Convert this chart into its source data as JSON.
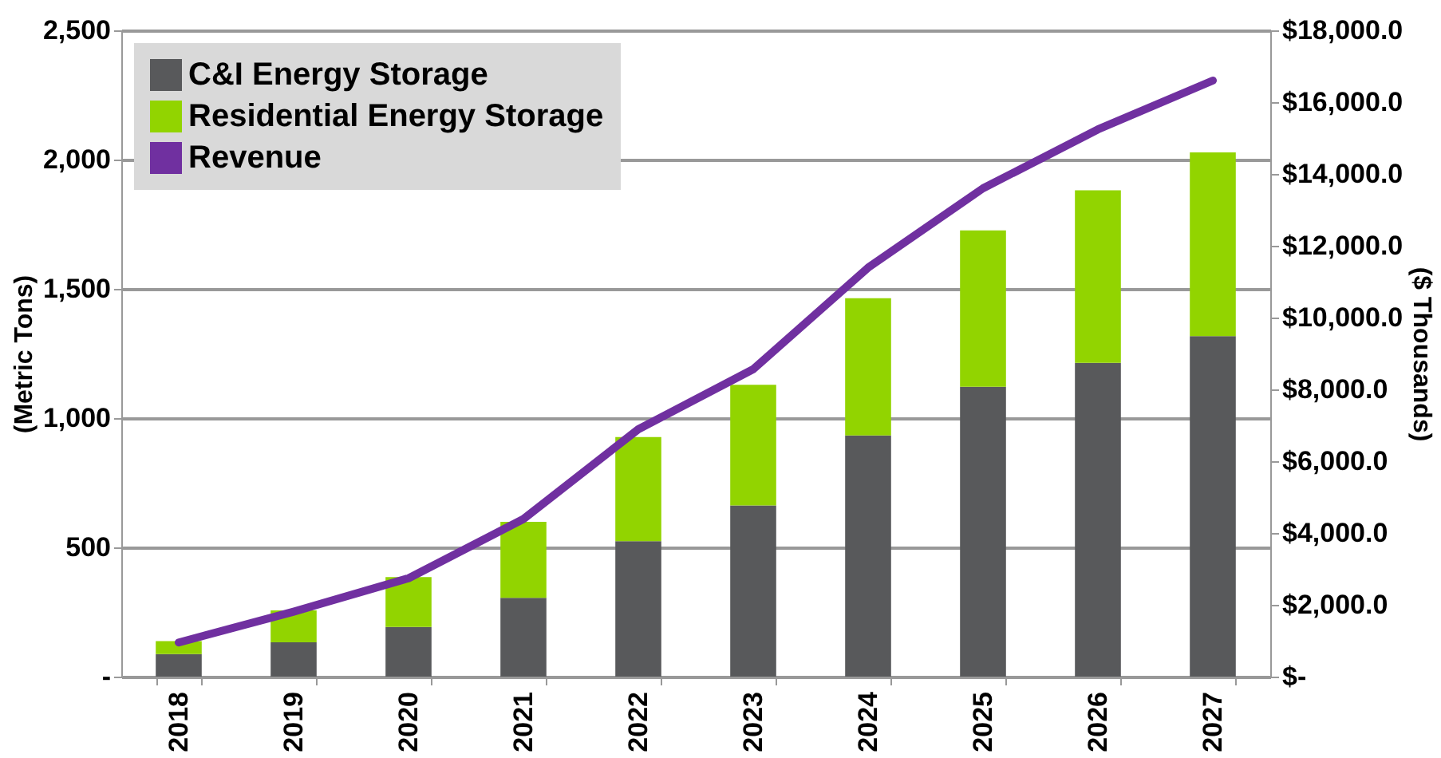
{
  "chart_data": {
    "type": "bar",
    "stacked": true,
    "categories": [
      "2018",
      "2019",
      "2020",
      "2021",
      "2022",
      "2023",
      "2024",
      "2025",
      "2026",
      "2027"
    ],
    "series": [
      {
        "name": "C&I Energy Storage",
        "color": "#58595b",
        "values": [
          87,
          133,
          192,
          305,
          524,
          662,
          933,
          1121,
          1214,
          1317
        ]
      },
      {
        "name": "Residential Energy Storage",
        "color": "#92d400",
        "values": [
          50,
          123,
          193,
          294,
          403,
          467,
          531,
          605,
          667,
          711
        ]
      },
      {
        "name": "Revenue",
        "type": "line",
        "axis": "y2",
        "color": "#7030a0",
        "values": [
          950,
          1810,
          2740,
          4390,
          6890,
          8560,
          11390,
          13600,
          15240,
          16600
        ]
      }
    ],
    "ylabel": "(Metric Tons)",
    "y2label": "($ Thousands)",
    "ylim": [
      0,
      2500
    ],
    "yticks": [
      {
        "value": 0,
        "label": "-"
      },
      {
        "value": 500,
        "label": "500"
      },
      {
        "value": 1000,
        "label": "1,000"
      },
      {
        "value": 1500,
        "label": "1,500"
      },
      {
        "value": 2000,
        "label": "2,000"
      },
      {
        "value": 2500,
        "label": "2,500"
      }
    ],
    "y2lim": [
      0,
      18000
    ],
    "y2ticks": [
      {
        "value": 0,
        "label": "$-"
      },
      {
        "value": 2000,
        "label": "$2,000.0"
      },
      {
        "value": 4000,
        "label": "$4,000.0"
      },
      {
        "value": 6000,
        "label": "$6,000.0"
      },
      {
        "value": 8000,
        "label": "$8,000.0"
      },
      {
        "value": 10000,
        "label": "$10,000.0"
      },
      {
        "value": 12000,
        "label": "$12,000.0"
      },
      {
        "value": 14000,
        "label": "$14,000.0"
      },
      {
        "value": 16000,
        "label": "$16,000.0"
      },
      {
        "value": 18000,
        "label": "$18,000.0"
      }
    ],
    "grid": "y",
    "legend": "top left"
  }
}
